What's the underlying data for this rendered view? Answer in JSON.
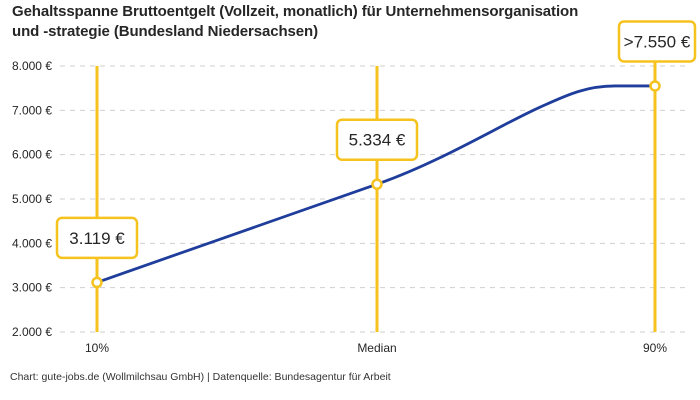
{
  "title": {
    "line1": "Gehaltsspanne Bruttoentgelt (Vollzeit, monatlich) für Unternehmensorganisation",
    "line2": "und -strategie (Bundesland Niedersachsen)"
  },
  "footer": "Chart: gute-jobs.de (Wollmilchsau GmbH) | Datenquelle: Bundesagentur für Arbeit",
  "colors": {
    "accent": "#F5C21E",
    "line": "#1F3D9B",
    "grid": "#CFCFCF",
    "text": "#262626",
    "muted_text": "#333333",
    "box_bg": "#FFFFFF"
  },
  "chart_data": {
    "type": "line",
    "title": "Gehaltsspanne Bruttoentgelt (Vollzeit, monatlich) für Unternehmensorganisation und -strategie (Bundesland Niedersachsen)",
    "categories": [
      "10%",
      "Median",
      "90%"
    ],
    "values": [
      3119,
      5334,
      7550
    ],
    "value_labels": [
      "3.119 €",
      "5.334 €",
      ">7.550 €"
    ],
    "last_value_capped": true,
    "ylim": [
      2000,
      8000
    ],
    "ytick_step": 1000,
    "ytick_labels": [
      "2.000 €",
      "3.000 €",
      "4.000 €",
      "5.000 €",
      "6.000 €",
      "7.000 €",
      "8.000 €"
    ],
    "grid": "horizontal-dashed",
    "legend": "none",
    "xlabel": "",
    "ylabel": ""
  }
}
